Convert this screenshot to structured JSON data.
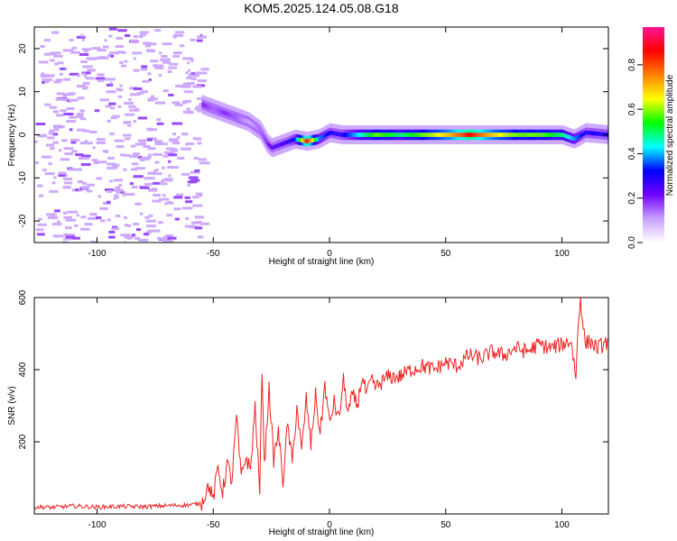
{
  "title": "KOM5.2025.124.05.08.G18",
  "chart_data": [
    {
      "type": "heatmap",
      "xlabel": "Height of straight line (km)",
      "ylabel": "Frequency (Hz)",
      "xlim": [
        -127,
        120
      ],
      "ylim": [
        -25,
        25
      ],
      "xticks": [
        -100,
        -50,
        0,
        50,
        100
      ],
      "yticks": [
        -20,
        -10,
        0,
        10,
        20
      ],
      "colorbar": {
        "label": "Normalized spectral amplitude",
        "range": [
          0,
          0.97
        ],
        "ticks": [
          "0.0",
          "0.2",
          "0.4",
          "0.6",
          "0.8"
        ],
        "tick_values": [
          0,
          0.2,
          0.4,
          0.6,
          0.8
        ],
        "colormap": [
          "#ffffff",
          "#c8a0ff",
          "#7000ff",
          "#0000ff",
          "#00ffff",
          "#00ff00",
          "#ffff00",
          "#ff8000",
          "#ff0000",
          "#ff1493"
        ]
      },
      "ridge": {
        "x": [
          -55,
          -50,
          -45,
          -40,
          -35,
          -30,
          -27,
          -25,
          -20,
          -15,
          -10,
          -5,
          0,
          5,
          10,
          20,
          30,
          40,
          50,
          60,
          70,
          80,
          90,
          100,
          105,
          110,
          120
        ],
        "y": [
          7,
          6,
          5,
          4,
          3,
          1,
          -2,
          -3,
          -2,
          -1,
          -1.5,
          -1,
          0.5,
          0,
          0,
          0,
          0,
          0,
          0,
          0,
          0,
          0,
          0,
          0,
          -1,
          0.5,
          0
        ],
        "amplitude": [
          0.2,
          0.15,
          0.2,
          0.15,
          0.1,
          0.15,
          0.2,
          0.25,
          0.25,
          0.35,
          0.9,
          0.4,
          0.3,
          0.3,
          0.4,
          0.6,
          0.5,
          0.6,
          0.7,
          0.9,
          0.7,
          0.6,
          0.6,
          0.5,
          0.4,
          0.3,
          0.3
        ]
      },
      "noise_region": [
        -127,
        -55
      ]
    },
    {
      "type": "line",
      "xlabel": "Height of straight line (km)",
      "ylabel": "SNR (v/v)",
      "xlim": [
        -127,
        120
      ],
      "ylim": [
        0,
        600
      ],
      "xticks": [
        -100,
        -50,
        0,
        50,
        100
      ],
      "yticks": [
        200,
        400,
        600
      ],
      "color": "#ee2222",
      "series": [
        {
          "x": [
            -127,
            -120,
            -110,
            -100,
            -90,
            -80,
            -70,
            -60,
            -55,
            -52,
            -50,
            -48,
            -46,
            -44,
            -42,
            -40,
            -38,
            -36,
            -34,
            -32,
            -30,
            -29,
            -28,
            -26,
            -24,
            -22,
            -20,
            -18,
            -16,
            -14,
            -12,
            -10,
            -8,
            -6,
            -4,
            -2,
            0,
            2,
            4,
            6,
            8,
            10,
            12,
            14,
            16,
            18,
            20,
            25,
            30,
            35,
            40,
            45,
            50,
            55,
            60,
            65,
            70,
            75,
            80,
            85,
            90,
            95,
            100,
            104,
            106,
            107,
            108,
            110,
            112,
            115,
            118,
            120
          ],
          "y": [
            20,
            18,
            22,
            19,
            21,
            20,
            23,
            25,
            30,
            80,
            40,
            130,
            60,
            140,
            90,
            270,
            100,
            160,
            120,
            300,
            60,
            410,
            130,
            350,
            150,
            230,
            90,
            250,
            140,
            300,
            170,
            320,
            190,
            330,
            220,
            360,
            250,
            310,
            260,
            370,
            280,
            330,
            300,
            380,
            330,
            370,
            350,
            380,
            380,
            400,
            410,
            400,
            420,
            410,
            440,
            430,
            450,
            440,
            460,
            450,
            470,
            460,
            470,
            480,
            380,
            520,
            600,
            470,
            480,
            460,
            470,
            480
          ]
        }
      ]
    }
  ]
}
